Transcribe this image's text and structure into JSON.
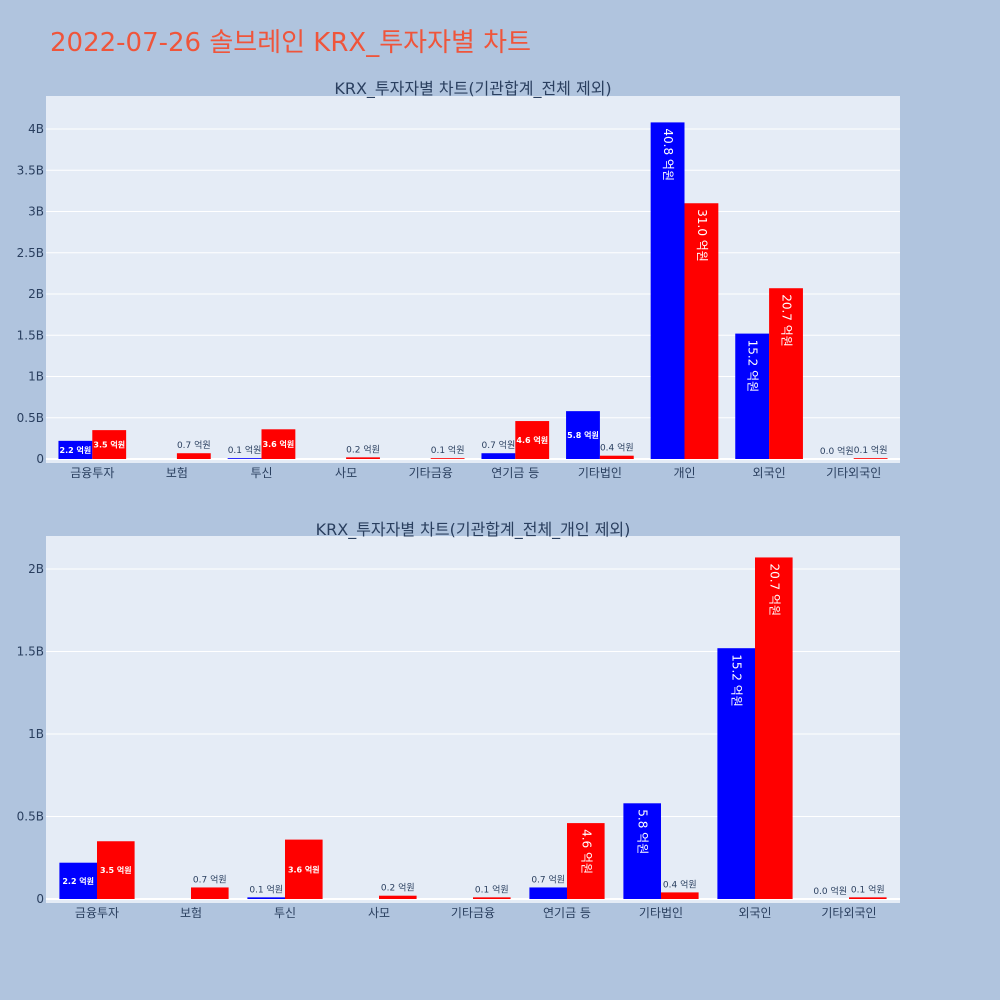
{
  "page_title": "2022-07-26 솔브레인 KRX_투자자별 차트",
  "colors": {
    "background": "#b0c4de",
    "plot_bg": "#e5ecf6",
    "buy": "#0000ff",
    "sell": "#ff0000",
    "title": "#ef553b",
    "text": "#2a3f5f"
  },
  "chart_data": [
    {
      "type": "bar",
      "title": "KRX_투자자별 차트(기관합계_전체 제외)",
      "categories": [
        "금융투자",
        "보험",
        "투신",
        "사모",
        "기타금융",
        "연기금 등",
        "기타법인",
        "개인",
        "외국인",
        "기타외국인"
      ],
      "series": [
        {
          "values": [
            0.22,
            0,
            0.01,
            0,
            0,
            0.07,
            0.58,
            4.08,
            1.52,
            0.0
          ],
          "labels": [
            "2.2 억원",
            "",
            "0.1 억원",
            "",
            "",
            "0.7 억원",
            "5.8 억원",
            "40.8 억원",
            "15.2 억원",
            "0.0 억원"
          ]
        },
        {
          "values": [
            0.35,
            0.07,
            0.36,
            0.02,
            0.01,
            0.46,
            0.04,
            3.1,
            2.07,
            0.01
          ],
          "labels": [
            "3.5 억원",
            "0.7 억원",
            "3.6 억원",
            "0.2 억원",
            "0.1 억원",
            "4.6 억원",
            "0.4 억원",
            "31.0 억원",
            "20.7 억원",
            "0.1 억원"
          ]
        }
      ],
      "ylim": [
        0,
        4.4
      ],
      "yticks": [
        0,
        0.5,
        1,
        1.5,
        2,
        2.5,
        3,
        3.5,
        4
      ],
      "ytick_labels": [
        "0",
        "0.5B",
        "1B",
        "1.5B",
        "2B",
        "2.5B",
        "3B",
        "3.5B",
        "4B"
      ],
      "grid": true
    },
    {
      "type": "bar",
      "title": "KRX_투자자별 차트(기관합계_전체_개인 제외)",
      "categories": [
        "금융투자",
        "보험",
        "투신",
        "사모",
        "기타금융",
        "연기금 등",
        "기타법인",
        "외국인",
        "기타외국인"
      ],
      "series": [
        {
          "values": [
            0.22,
            0,
            0.01,
            0,
            0,
            0.07,
            0.58,
            1.52,
            0.0
          ],
          "labels": [
            "2.2 억원",
            "",
            "0.1 억원",
            "",
            "",
            "0.7 억원",
            "5.8 억원",
            "15.2 억원",
            "0.0 억원"
          ]
        },
        {
          "values": [
            0.35,
            0.07,
            0.36,
            0.02,
            0.01,
            0.46,
            0.04,
            2.07,
            0.01
          ],
          "labels": [
            "3.5 억원",
            "0.7 억원",
            "3.6 억원",
            "0.2 억원",
            "0.1 억원",
            "4.6 억원",
            "0.4 억원",
            "20.7 억원",
            "0.1 억원"
          ]
        }
      ],
      "ylim": [
        0,
        2.2
      ],
      "yticks": [
        0,
        0.5,
        1,
        1.5,
        2
      ],
      "ytick_labels": [
        "0",
        "0.5B",
        "1B",
        "1.5B",
        "2B"
      ],
      "grid": true
    }
  ]
}
